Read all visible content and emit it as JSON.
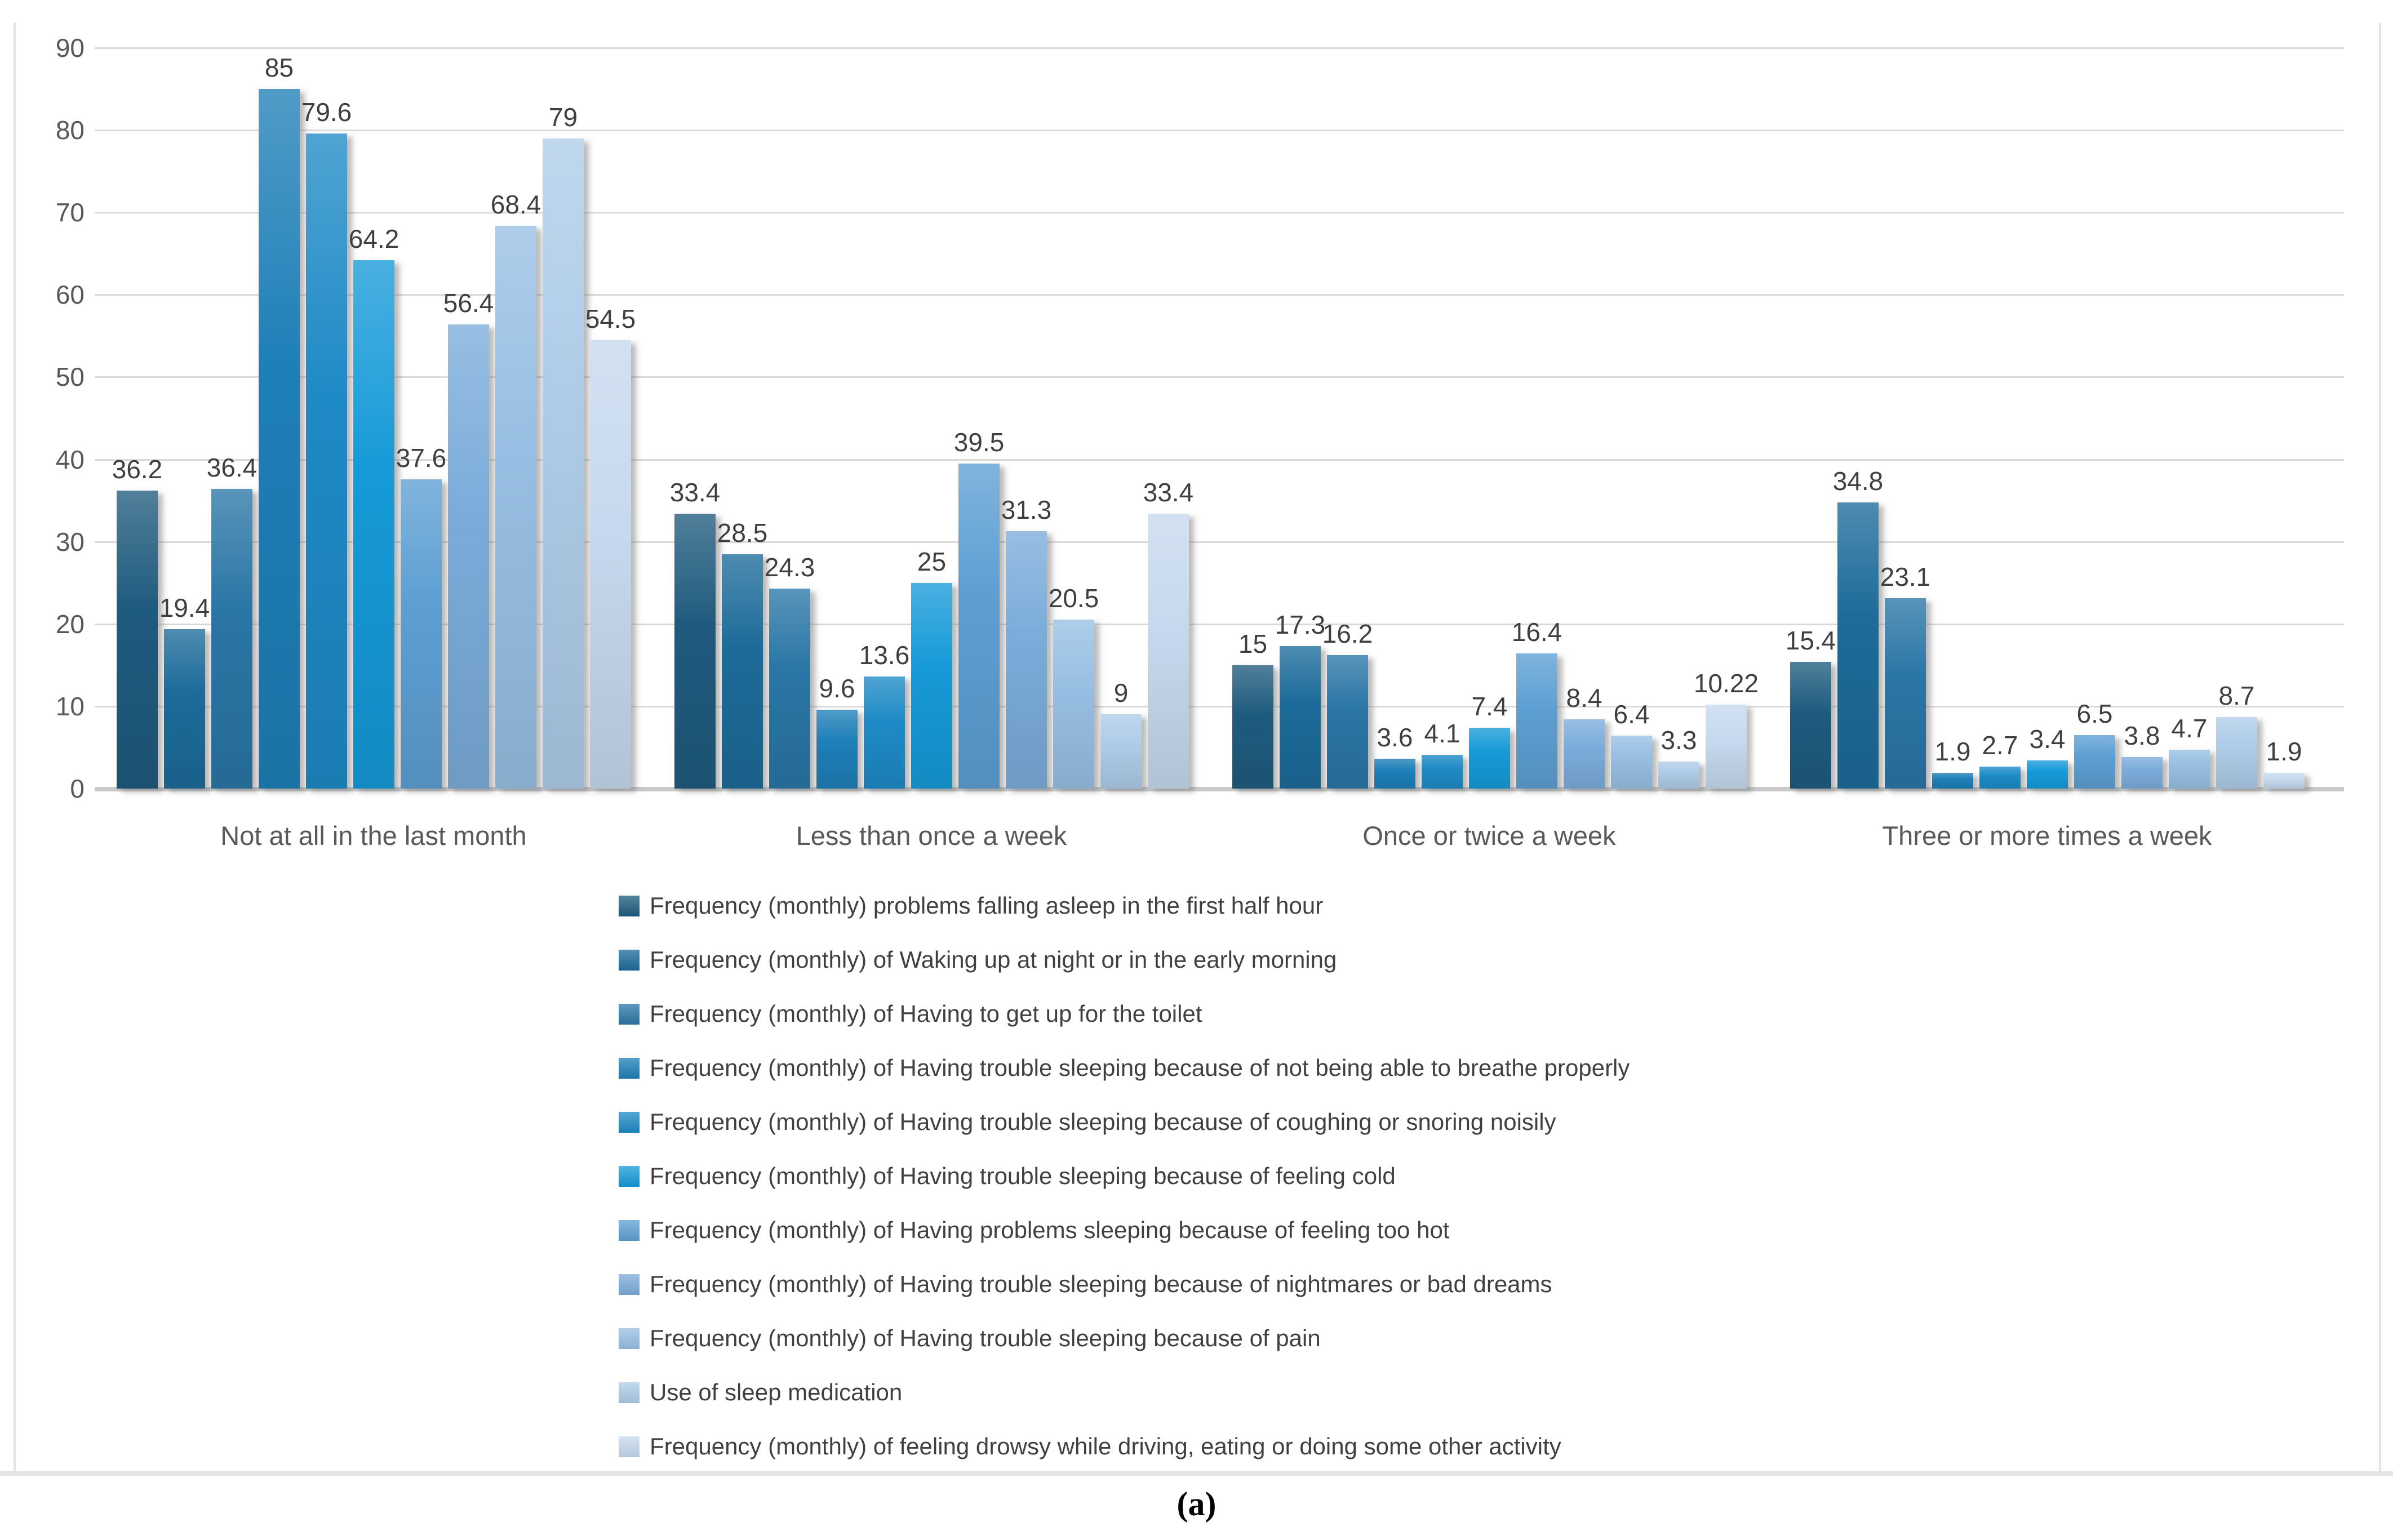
{
  "figure": {
    "caption": "(a)"
  },
  "chart_data": {
    "type": "bar",
    "title": "",
    "xlabel": "",
    "ylabel": "",
    "categories": [
      "Not at all in the last month",
      "Less than once a week",
      "Once or twice a week",
      "Three or more times a week"
    ],
    "series": [
      {
        "name": "Frequency (monthly) problems falling asleep in the first half hour",
        "color": "#1F5B7E",
        "values": [
          36.2,
          33.4,
          15,
          15.4
        ]
      },
      {
        "name": "Frequency (monthly) of Waking up at night or in the early morning",
        "color": "#1C6B9A",
        "values": [
          19.4,
          28.5,
          17.3,
          34.8
        ]
      },
      {
        "name": "Frequency (monthly) of Having to get up for the toilet",
        "color": "#2A76A6",
        "values": [
          36.4,
          24.3,
          16.2,
          23.1
        ]
      },
      {
        "name": "Frequency (monthly) of Having trouble sleeping because of not being able to breathe properly",
        "color": "#1E7FB8",
        "values": [
          85,
          9.6,
          3.6,
          1.9
        ]
      },
      {
        "name": "Frequency (monthly) of Having trouble sleeping because of coughing or snoring noisily",
        "color": "#1E8AC6",
        "values": [
          79.6,
          13.6,
          4.1,
          2.7
        ]
      },
      {
        "name": "Frequency (monthly) of Having trouble sleeping because of feeling cold",
        "color": "#169AD8",
        "values": [
          64.2,
          25,
          7.4,
          3.4
        ]
      },
      {
        "name": "Frequency (monthly) of Having problems sleeping because of feeling too hot",
        "color": "#5D9FD3",
        "values": [
          37.6,
          39.5,
          16.4,
          6.5
        ]
      },
      {
        "name": "Frequency (monthly) of Having trouble sleeping because of nightmares or bad dreams",
        "color": "#7BACDA",
        "values": [
          56.4,
          31.3,
          8.4,
          3.8
        ]
      },
      {
        "name": "Frequency (monthly) of Having trouble sleeping because of pain",
        "color": "#97BFE3",
        "values": [
          68.4,
          20.5,
          6.4,
          4.7
        ]
      },
      {
        "name": "Use of sleep medication",
        "color": "#AECCE8",
        "values": [
          79,
          9,
          3.3,
          8.7
        ]
      },
      {
        "name": "Frequency (monthly) of feeling drowsy while driving, eating or doing some other activity",
        "color": "#C6D9EE",
        "values": [
          54.5,
          33.4,
          10.22,
          1.9
        ]
      }
    ],
    "y_axis": {
      "min": 0,
      "max": 90,
      "step": 10,
      "ticks": [
        0,
        10,
        20,
        30,
        40,
        50,
        60,
        70,
        80,
        90
      ]
    },
    "grid": true,
    "value_labels": true,
    "legend_position": "bottom-left"
  },
  "style_colors": {
    "grid": "#d9d9d9",
    "axis_line": "#c9c9c9",
    "tick_label": "#595959",
    "value_label": "#3f3f3f",
    "legend_text": "#404040",
    "figure_border": "#e4e4e4",
    "background": "#ffffff"
  }
}
